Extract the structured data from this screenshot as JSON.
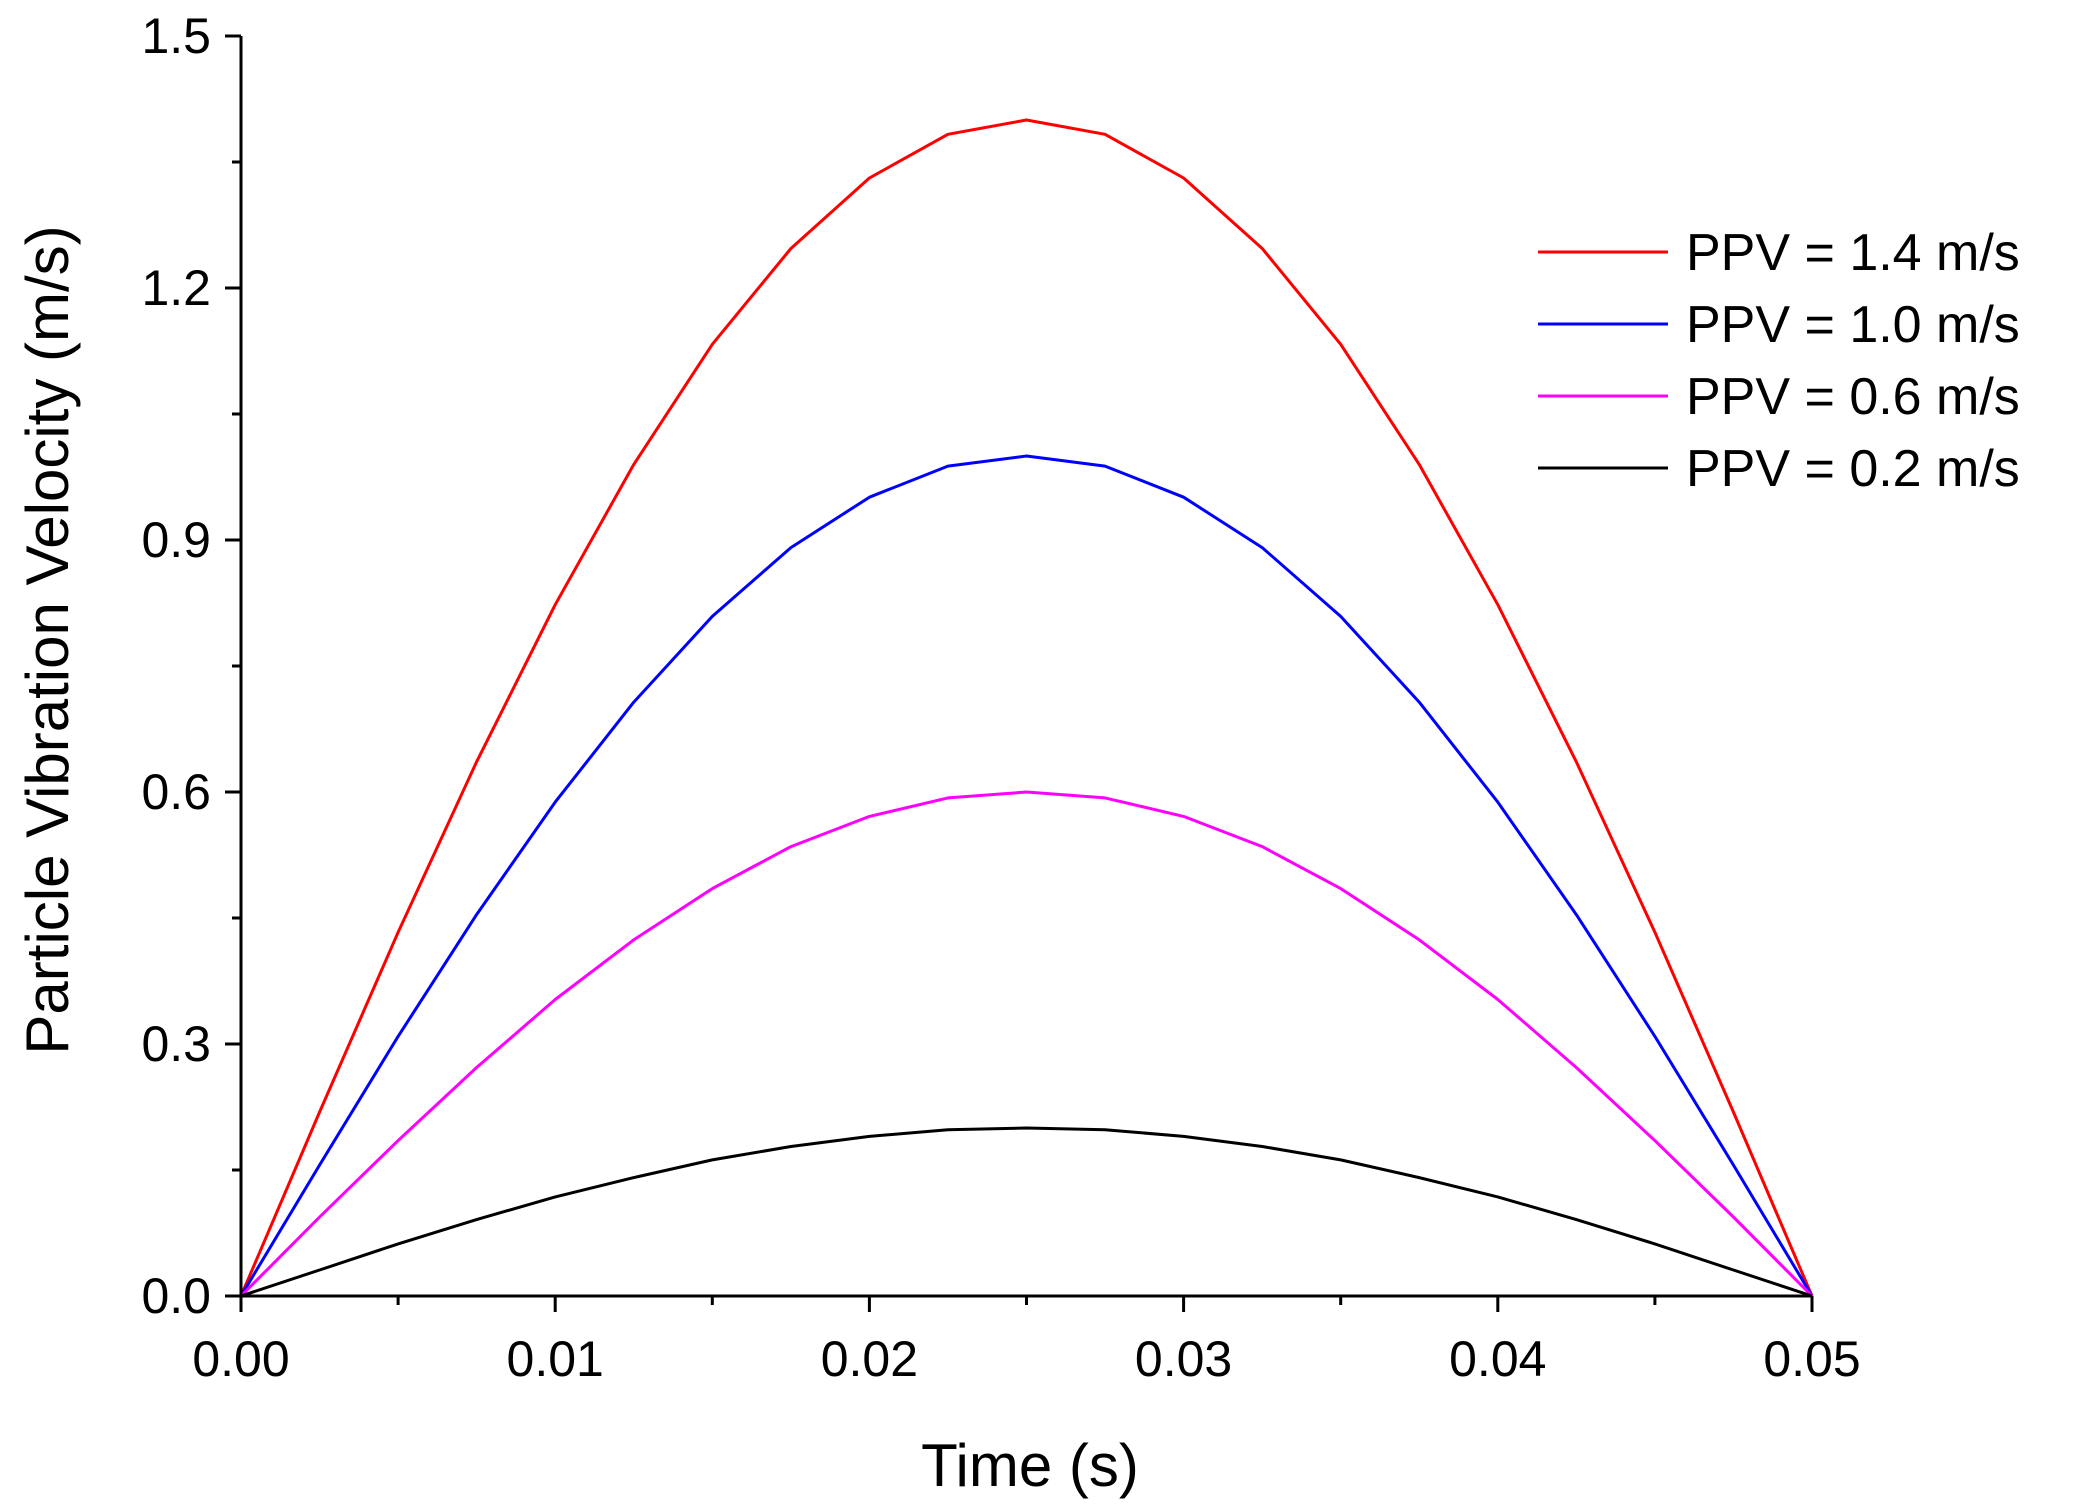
{
  "chart_data": {
    "type": "line",
    "title": "",
    "xlabel": "Time (s)",
    "ylabel": "Particle Vibration Velocity (m/s)",
    "xlim": [
      0,
      0.05
    ],
    "ylim": [
      0,
      1.5
    ],
    "xticks": [
      0.0,
      0.01,
      0.02,
      0.03,
      0.04,
      0.05
    ],
    "xtick_labels": [
      "0.00",
      "0.01",
      "0.02",
      "0.03",
      "0.04",
      "0.05"
    ],
    "yticks": [
      0.0,
      0.3,
      0.6,
      0.9,
      1.2,
      1.5
    ],
    "ytick_labels": [
      "0.0",
      "0.3",
      "0.6",
      "0.9",
      "1.2",
      "1.5"
    ],
    "grid": false,
    "legend_position": "top-right",
    "series": [
      {
        "name": "PPV = 1.4 m/s",
        "color": "#ff0000",
        "x": [
          0,
          0.0025,
          0.005,
          0.0075,
          0.01,
          0.0125,
          0.015,
          0.0175,
          0.02,
          0.0225,
          0.025,
          0.0275,
          0.03,
          0.0325,
          0.035,
          0.0375,
          0.04,
          0.0425,
          0.045,
          0.0475,
          0.05
        ],
        "values": [
          0,
          0.219,
          0.433,
          0.636,
          0.823,
          0.99,
          1.133,
          1.247,
          1.331,
          1.383,
          1.4,
          1.383,
          1.331,
          1.247,
          1.133,
          0.99,
          0.823,
          0.636,
          0.433,
          0.219,
          0
        ]
      },
      {
        "name": "PPV = 1.0 m/s",
        "color": "#0000ff",
        "x": [
          0,
          0.0025,
          0.005,
          0.0075,
          0.01,
          0.0125,
          0.015,
          0.0175,
          0.02,
          0.0225,
          0.025,
          0.0275,
          0.03,
          0.0325,
          0.035,
          0.0375,
          0.04,
          0.0425,
          0.045,
          0.0475,
          0.05
        ],
        "values": [
          0,
          0.156,
          0.309,
          0.454,
          0.588,
          0.707,
          0.809,
          0.891,
          0.951,
          0.988,
          1.0,
          0.988,
          0.951,
          0.891,
          0.809,
          0.707,
          0.588,
          0.454,
          0.309,
          0.156,
          0
        ]
      },
      {
        "name": "PPV = 0.6 m/s",
        "color": "#ff00ff",
        "x": [
          0,
          0.0025,
          0.005,
          0.0075,
          0.01,
          0.0125,
          0.015,
          0.0175,
          0.02,
          0.0225,
          0.025,
          0.0275,
          0.03,
          0.0325,
          0.035,
          0.0375,
          0.04,
          0.0425,
          0.045,
          0.0475,
          0.05
        ],
        "values": [
          0,
          0.094,
          0.185,
          0.272,
          0.353,
          0.424,
          0.485,
          0.535,
          0.571,
          0.593,
          0.6,
          0.593,
          0.571,
          0.535,
          0.485,
          0.424,
          0.353,
          0.272,
          0.185,
          0.094,
          0
        ]
      },
      {
        "name": "PPV = 0.2 m/s",
        "color": "#000000",
        "x": [
          0,
          0.0025,
          0.005,
          0.0075,
          0.01,
          0.0125,
          0.015,
          0.0175,
          0.02,
          0.0225,
          0.025,
          0.0275,
          0.03,
          0.0325,
          0.035,
          0.0375,
          0.04,
          0.0425,
          0.045,
          0.0475,
          0.05
        ],
        "values": [
          0,
          0.031,
          0.062,
          0.091,
          0.118,
          0.141,
          0.162,
          0.178,
          0.19,
          0.198,
          0.2,
          0.198,
          0.19,
          0.178,
          0.162,
          0.141,
          0.118,
          0.091,
          0.062,
          0.031,
          0
        ]
      }
    ]
  }
}
